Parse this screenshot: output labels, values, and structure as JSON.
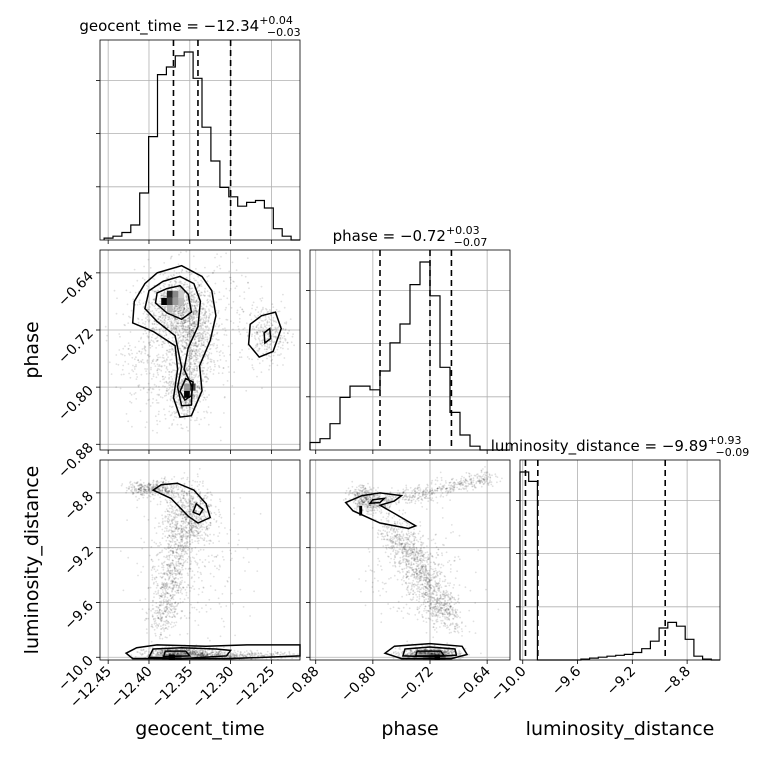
{
  "chart_data": {
    "type": "corner",
    "parameters": [
      "geocent_time",
      "phase",
      "luminosity_distance"
    ],
    "axis_labels": {
      "geocent_time": "geocent_time",
      "phase": "phase",
      "luminosity_distance": "luminosity_distance"
    },
    "ticks": {
      "geocent_time": {
        "values": [
          -12.45,
          -12.4,
          -12.35,
          -12.3,
          -12.25
        ],
        "labels": [
          "−12.45",
          "−12.40",
          "−12.35",
          "−12.30",
          "−12.25"
        ]
      },
      "phase": {
        "values": [
          -0.88,
          -0.8,
          -0.72,
          -0.64
        ],
        "labels": [
          "−0.88",
          "−0.80",
          "−0.72",
          "−0.64"
        ]
      },
      "luminosity_distance": {
        "values": [
          -10.0,
          -9.6,
          -9.2,
          -8.8
        ],
        "labels": [
          "−10.0",
          "−9.6",
          "−9.2",
          "−8.8"
        ]
      }
    },
    "ranges": {
      "geocent_time": [
        -12.46,
        -12.215
      ],
      "phase": [
        -0.888,
        -0.608
      ],
      "luminosity_distance": [
        -10.02,
        -8.56
      ]
    },
    "titles": [
      {
        "param": "geocent_time",
        "prefix": "geocent_time = ",
        "median": "−12.34",
        "plus": "+0.04",
        "minus": "−0.03"
      },
      {
        "param": "phase",
        "prefix": "phase = ",
        "median": "−0.72",
        "plus": "+0.03",
        "minus": "−0.07"
      },
      {
        "param": "luminosity_distance",
        "prefix": "luminosity_distance = ",
        "median": "−9.89",
        "plus": "+0.93",
        "minus": "−0.09"
      }
    ],
    "quantiles": {
      "geocent_time": [
        -12.37,
        -12.34,
        -12.3
      ],
      "phase": [
        -0.79,
        -0.72,
        -0.69
      ],
      "luminosity_distance": [
        -9.98,
        -9.89,
        -8.96
      ]
    },
    "histograms": {
      "geocent_time": {
        "range": [
          -12.455,
          -12.215
        ],
        "counts": [
          0.01,
          0.02,
          0.04,
          0.08,
          0.25,
          0.55,
          0.88,
          0.92,
          0.98,
          1.0,
          0.86,
          0.6,
          0.42,
          0.28,
          0.23,
          0.18,
          0.2,
          0.21,
          0.17,
          0.06,
          0.02,
          0.0
        ]
      },
      "phase": {
        "range": [
          -0.888,
          -0.608
        ],
        "counts": [
          0.04,
          0.06,
          0.14,
          0.28,
          0.34,
          0.34,
          0.32,
          0.42,
          0.57,
          0.67,
          0.88,
          1.0,
          0.82,
          0.44,
          0.2,
          0.08,
          0.02,
          0.0,
          0.0,
          0.0
        ]
      },
      "luminosity_distance": {
        "range": [
          -10.02,
          -8.56
        ],
        "counts": [
          1.0,
          0.95,
          0.0,
          0.0,
          0.0,
          0.0,
          0.0,
          0.005,
          0.01,
          0.015,
          0.02,
          0.025,
          0.03,
          0.04,
          0.06,
          0.1,
          0.17,
          0.2,
          0.18,
          0.11,
          0.02,
          0.005,
          0.0
        ]
      }
    },
    "grid": true,
    "levels": [
      0.39,
      0.86,
      0.99
    ]
  }
}
